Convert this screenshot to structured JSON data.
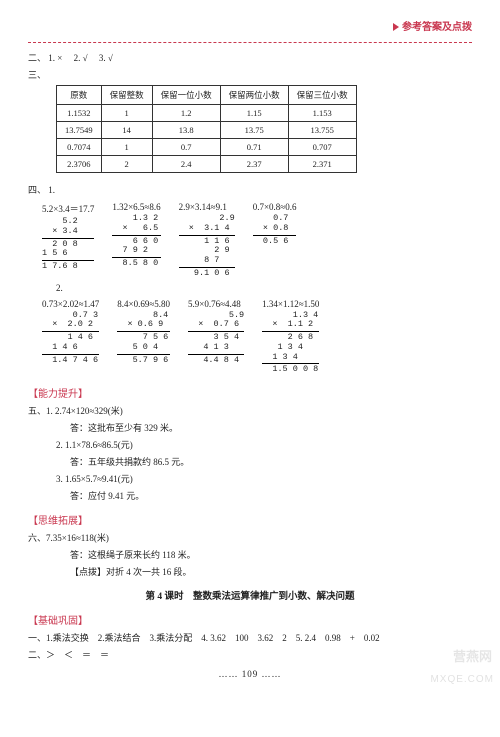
{
  "header": {
    "title": "参考答案及点拨"
  },
  "sec2": {
    "prefix": "二、",
    "items": [
      "1. ×",
      "2. √",
      "3. √"
    ]
  },
  "sec3": {
    "prefix": "三、",
    "table": {
      "headers": [
        "原数",
        "保留整数",
        "保留一位小数",
        "保留两位小数",
        "保留三位小数"
      ],
      "rows": [
        [
          "1.1532",
          "1",
          "1.2",
          "1.15",
          "1.153"
        ],
        [
          "13.7549",
          "14",
          "13.8",
          "13.75",
          "13.755"
        ],
        [
          "0.7074",
          "1",
          "0.7",
          "0.71",
          "0.707"
        ],
        [
          "2.3706",
          "2",
          "2.4",
          "2.37",
          "2.371"
        ]
      ]
    }
  },
  "sec4": {
    "prefix": "四、",
    "part1_label": "1.",
    "row1": [
      {
        "label": "5.2×3.4＝17.7",
        "lines": [
          "    5.2",
          "  × 3.4",
          "—",
          "  2 0 8",
          "1 5 6",
          "—",
          "1 7.6 8"
        ]
      },
      {
        "label": "1.32×6.5≈8.6",
        "lines": [
          "    1.3 2",
          "  ×   6.5",
          "—",
          "    6 6 0",
          "  7 9 2",
          "—",
          "  8.5 8 0"
        ]
      },
      {
        "label": "2.9×3.14≈9.1",
        "lines": [
          "        2.9",
          "  ×  3.1 4",
          "—",
          "     1 1 6",
          "       2 9",
          "     8 7",
          "—",
          "   9.1 0 6"
        ]
      },
      {
        "label": "0.7×0.8≈0.6",
        "lines": [
          "    0.7",
          "  × 0.8",
          "—",
          "  0.5 6"
        ]
      }
    ],
    "part2_label": "2.",
    "row2": [
      {
        "label": "0.73×2.02≈1.47",
        "lines": [
          "      0.7 3",
          "  ×  2.0 2",
          "—",
          "     1 4 6",
          "  1 4 6",
          "—",
          "  1.4 7 4 6"
        ]
      },
      {
        "label": "8.4×0.69≈5.80",
        "lines": [
          "       8.4",
          "  × 0.6 9",
          "—",
          "     7 5 6",
          "   5 0 4",
          "—",
          "   5.7 9 6"
        ]
      },
      {
        "label": "5.9×0.76≈4.48",
        "lines": [
          "        5.9",
          "  ×  0.7 6",
          "—",
          "     3 5 4",
          "   4 1 3",
          "—",
          "   4.4 8 4"
        ]
      },
      {
        "label": "1.34×1.12≈1.50",
        "lines": [
          "      1.3 4",
          "  ×  1.1 2",
          "—",
          "     2 6 8",
          "   1 3 4",
          "  1 3 4",
          "—",
          "  1.5 0 0 8"
        ]
      }
    ]
  },
  "ability": {
    "tag": "【能力提升】",
    "lines": [
      "五、1. 2.74×120≈329(米)",
      "答：这批布至少有 329 米。",
      "2. 1.1×78.6≈86.5(元)",
      "答：五年级共捐款约 86.5 元。",
      "3. 1.65×5.7≈9.41(元)",
      "答：应付 9.41 元。"
    ]
  },
  "think": {
    "tag": "【思维拓展】",
    "lines": [
      "六、7.35×16≈118(米)",
      "答：这根绳子原来长约 118 米。",
      "【点拨】对折 4 次一共 16 段。"
    ]
  },
  "lesson": {
    "title": "第 4 课时　整数乘法运算律推广到小数、解决问题"
  },
  "base": {
    "tag": "【基础巩固】",
    "line1": "一、1.乘法交换　2.乘法结合　3.乘法分配　4. 3.62　100　3.62　2　5. 2.4　0.98　+　0.02",
    "line2": "二、＞　＜　＝　＝"
  },
  "footer": {
    "page": "…… 109 ……"
  },
  "watermark": {
    "a": "营燕网",
    "b": "MXQE.COM"
  }
}
